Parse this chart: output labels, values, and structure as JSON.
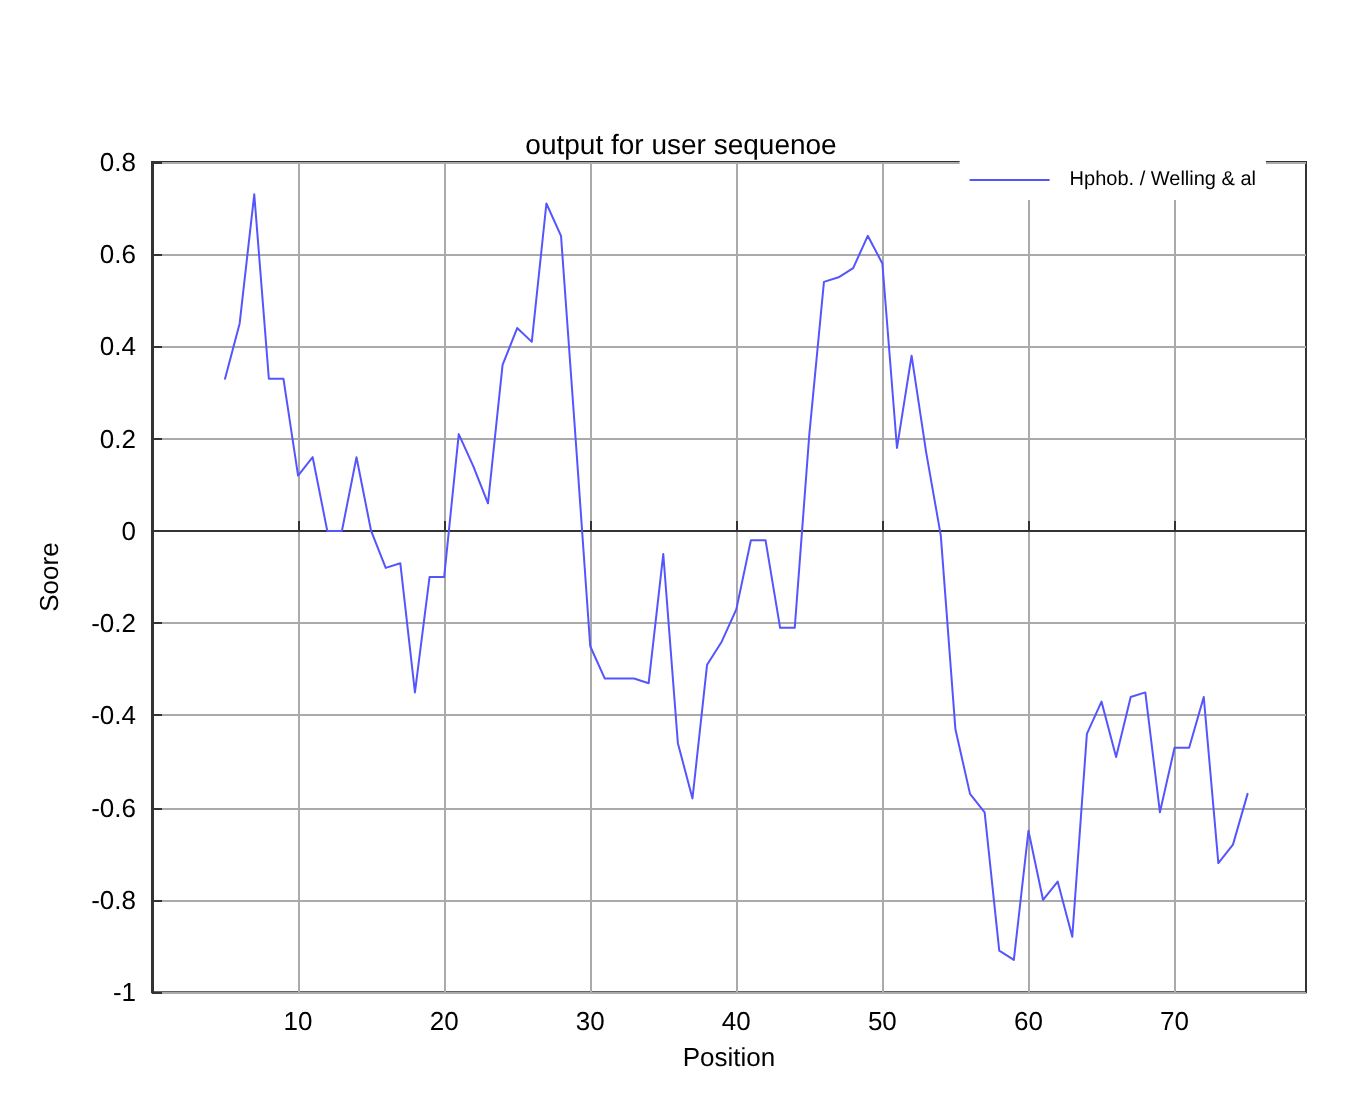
{
  "chart_data": {
    "type": "line",
    "title": "output for user sequenoe",
    "xlabel": "Position",
    "ylabel": "Soore",
    "x": [
      5,
      6,
      7,
      8,
      9,
      10,
      11,
      12,
      13,
      14,
      15,
      16,
      17,
      18,
      19,
      20,
      21,
      22,
      23,
      24,
      25,
      26,
      27,
      28,
      29,
      30,
      31,
      32,
      33,
      34,
      35,
      36,
      37,
      38,
      39,
      40,
      41,
      42,
      43,
      44,
      45,
      46,
      47,
      48,
      49,
      50,
      51,
      52,
      53,
      54,
      55,
      56,
      57,
      58,
      59,
      60,
      61,
      62,
      63,
      64,
      65,
      66,
      67,
      68,
      69,
      70,
      71,
      72,
      73,
      74,
      75
    ],
    "series": [
      {
        "name": "Hphob. / Welling & al",
        "color": "#5555ff",
        "values": [
          0.33,
          0.45,
          0.73,
          0.33,
          0.33,
          0.12,
          0.16,
          0.0,
          0.0,
          0.16,
          0.0,
          -0.08,
          -0.07,
          -0.35,
          -0.1,
          -0.1,
          0.21,
          0.14,
          0.06,
          0.36,
          0.44,
          0.41,
          0.71,
          0.64,
          0.2,
          -0.25,
          -0.32,
          -0.32,
          -0.32,
          -0.33,
          -0.05,
          -0.46,
          -0.58,
          -0.29,
          -0.24,
          -0.17,
          -0.02,
          -0.02,
          -0.21,
          -0.21,
          0.21,
          0.54,
          0.55,
          0.57,
          0.64,
          0.58,
          0.18,
          0.38,
          0.17,
          -0.01,
          -0.43,
          -0.57,
          -0.61,
          -0.91,
          -0.93,
          -0.65,
          -0.8,
          -0.76,
          -0.88,
          -0.44,
          -0.37,
          -0.49,
          -0.36,
          -0.35,
          -0.61,
          -0.47,
          -0.47,
          -0.36,
          -0.72,
          -0.68,
          -0.57
        ]
      }
    ],
    "xlim": [
      0,
      79
    ],
    "xticks": [
      10,
      20,
      30,
      40,
      50,
      60,
      70
    ],
    "ylim": [
      -1,
      0.8
    ],
    "yticks": [
      -1,
      -0.8,
      -0.6,
      -0.4,
      -0.2,
      0,
      0.2,
      0.4,
      0.6,
      0.8
    ],
    "grid": true,
    "legend": "top right",
    "marker": "none",
    "line_style": "solid"
  }
}
